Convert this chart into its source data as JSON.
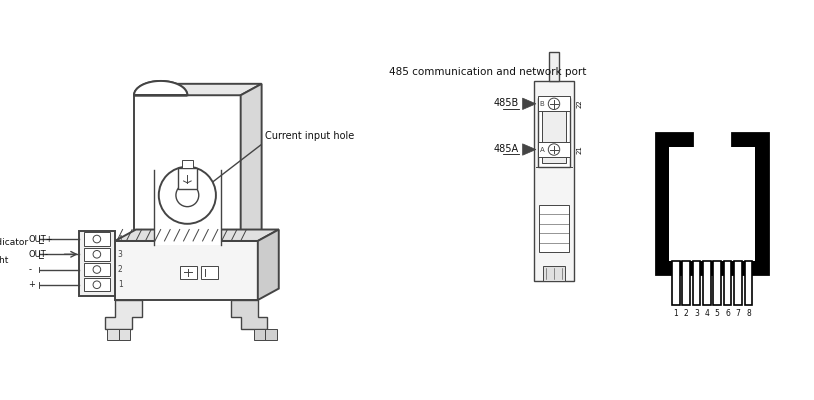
{
  "bg_color": "#ffffff",
  "lc": "#444444",
  "lc_thin": "#666666",
  "title_485": "485 communication and network port",
  "label_current_input": "Current input hole",
  "label_indicator": "Indicator\nlight",
  "label_plus": "+",
  "label_minus": "-",
  "label_out_minus": "OUT-",
  "label_out_plus": "OUT+",
  "label_485B": "485B",
  "label_485A": "485A",
  "pin_labels": [
    "1",
    "2",
    "3",
    "4",
    "5",
    "6",
    "7",
    "8"
  ]
}
